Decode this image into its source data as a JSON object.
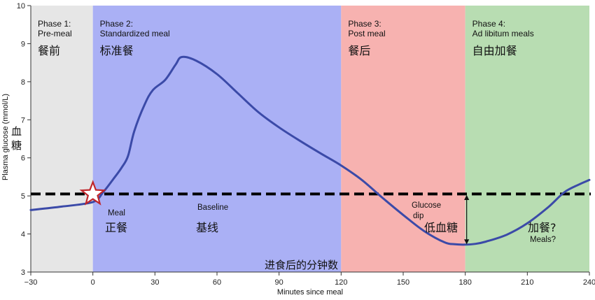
{
  "chart_data": {
    "type": "line",
    "xlabel": "Minutes since meal",
    "xlabel_zh": "进食后的分钟数",
    "ylabel": "Plasma glucose (mmol/L)",
    "ylabel_zh": "血糖",
    "xlim": [
      -30,
      240
    ],
    "ylim": [
      3,
      10
    ],
    "xticks": [
      -30,
      0,
      30,
      60,
      90,
      120,
      150,
      180,
      210,
      240
    ],
    "yticks": [
      3,
      4,
      5,
      6,
      7,
      8,
      9,
      10
    ],
    "baseline": 5.05,
    "phases": [
      {
        "x0": -30,
        "x1": 0,
        "title": "Phase 1:",
        "subtitle": "Pre-meal",
        "zh": "餐前",
        "color": "#e6e6e6"
      },
      {
        "x0": 0,
        "x1": 120,
        "title": "Phase 2:",
        "subtitle": "Standardized meal",
        "zh": "标准餐",
        "color": "#aab0f5"
      },
      {
        "x0": 120,
        "x1": 180,
        "title": "Phase 3:",
        "subtitle": "Post meal",
        "zh": "餐后",
        "color": "#f7b2b0"
      },
      {
        "x0": 180,
        "x1": 240,
        "title": "Phase 4:",
        "subtitle": "Ad libitum meals",
        "zh": "自由加餐",
        "color": "#b8ddb2"
      }
    ],
    "series": [
      {
        "color": "#3b4aa8",
        "x": [
          -30,
          -15,
          0,
          5,
          10,
          14,
          17,
          20,
          25,
          29,
          35,
          40,
          43,
          50,
          60,
          70,
          80,
          90,
          100,
          110,
          120,
          130,
          140,
          150,
          160,
          170,
          175,
          180,
          185,
          190,
          200,
          210,
          220,
          228,
          235,
          240
        ],
        "y": [
          4.63,
          4.72,
          4.84,
          5.1,
          5.45,
          5.75,
          6.05,
          6.7,
          7.4,
          7.78,
          8.05,
          8.45,
          8.65,
          8.55,
          8.2,
          7.7,
          7.2,
          6.8,
          6.45,
          6.12,
          5.8,
          5.42,
          4.95,
          4.5,
          4.08,
          3.78,
          3.73,
          3.72,
          3.74,
          3.8,
          3.98,
          4.28,
          4.7,
          5.1,
          5.3,
          5.42
        ]
      }
    ],
    "annotations": {
      "meal_en": "Meal",
      "meal_zh": "正餐",
      "baseline_en": "Baseline",
      "baseline_zh": "基线",
      "dip_en_1": "Glucose",
      "dip_en_2": "dip",
      "dip_zh": "低血糖",
      "meals_en": "Meals?",
      "meals_zh": "加餐?"
    }
  }
}
